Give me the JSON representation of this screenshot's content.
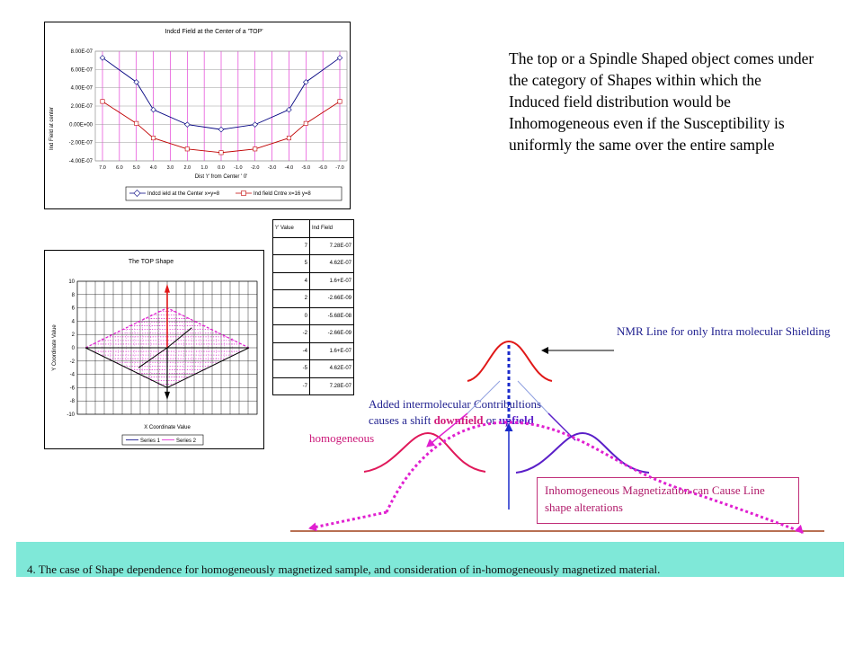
{
  "chart1": {
    "title": "Indcd Field at the Center of a 'TOP'",
    "ylabel": "Ind Field at center",
    "xlabel": "Dist 'r' from Center ' 0'",
    "yticks": [
      "8.00E-07",
      "6.00E-07",
      "4.00E-07",
      "2.00E-07",
      "0.00E+00",
      "-2.00E-07",
      "-4.00E-07"
    ],
    "xticks": [
      "7.0",
      "6.0",
      "5.0",
      "4.0",
      "3.0",
      "2.0",
      "1.0",
      "0.0",
      "-1.0",
      "-2.0",
      "-3.0",
      "-4.0",
      "-5.0",
      "-6.0",
      "-7.0"
    ],
    "legend": [
      "Indcd ield at the Center x=y=8",
      "Ind field Cntre x=16 y=8"
    ]
  },
  "chart2": {
    "title": "The TOP Shape",
    "ylabel": "Y Coordinate Value",
    "xlabel": "X Coordinate Value",
    "yticks": [
      "10",
      "8",
      "6",
      "4",
      "2",
      "0",
      "-2",
      "-4",
      "-6",
      "-8",
      "-10"
    ],
    "legend": [
      "Series 1",
      "Series 2"
    ]
  },
  "table": {
    "headers": [
      "'r' Value",
      "Ind Field"
    ],
    "rows": [
      [
        "7",
        "7.28E-07"
      ],
      [
        "5",
        "4.62E-07"
      ],
      [
        "4",
        "1.6+E-07"
      ],
      [
        "2",
        "-2.66E-09"
      ],
      [
        "0",
        "-5.68E-08"
      ],
      [
        "-2",
        "-2.66E-09"
      ],
      [
        "-4",
        "1.6+E-07"
      ],
      [
        "-5",
        "4.62E-07"
      ],
      [
        "-7",
        "7.28E-07"
      ]
    ]
  },
  "chart_data": [
    {
      "type": "line",
      "title": "Indcd Field at the Center of a 'TOP'",
      "xlabel": "Dist 'r' from Center ' 0'",
      "ylabel": "Ind Field at center",
      "x": [
        7,
        5,
        4,
        2,
        0,
        -2,
        -4,
        -5,
        -7
      ],
      "ylim": [
        -4e-07,
        8e-07
      ],
      "series": [
        {
          "name": "Indcd ield at the Center x=y=8",
          "values": [
            7.28e-07,
            4.62e-07,
            1.6e-07,
            -2.66e-09,
            -5.68e-08,
            -2.66e-09,
            1.6e-07,
            4.62e-07,
            7.28e-07
          ]
        },
        {
          "name": "Ind field Cntre x=16 y=8",
          "values": [
            2.5e-07,
            1e-08,
            -1.5e-07,
            -2.7e-07,
            -3.1e-07,
            -2.7e-07,
            -1.5e-07,
            1e-08,
            2.5e-07
          ]
        }
      ]
    },
    {
      "type": "line",
      "title": "The TOP Shape",
      "xlabel": "X Coordinate Value",
      "ylabel": "Y Coordinate Value",
      "ylim": [
        -10,
        10
      ],
      "series": [
        {
          "name": "Series 1",
          "x": [
            -10,
            0,
            10,
            0,
            -10
          ],
          "y": [
            0,
            -6,
            0,
            -6,
            0
          ]
        },
        {
          "name": "Series 2",
          "x": [
            -10,
            0,
            10,
            0,
            -10
          ],
          "y": [
            0,
            6,
            0,
            6,
            0
          ]
        }
      ]
    }
  ],
  "text": {
    "description": "The top or a Spindle Shaped object comes under the category of Shapes within which the Induced field distribution would be Inhomogeneous even if the Susceptibility is uniformly the same over the entire sample",
    "nmr_label": "NMR Line for only Intra molecular Shielding",
    "added_line1": "Added intermolecular Contribultions",
    "added_line2_pre": "causes a shift ",
    "downfield": "downfield",
    "or": " or ",
    "upfield": "upfield",
    "homogeneous": "homogeneous",
    "inhomogeneous_box": "Inhomogeneous Magnetization can Cause Line shape alterations",
    "footer": "4. The case of Shape dependence for homogeneously magnetized sample, and consideration of in-homogeneously magnetized material."
  },
  "colors": {
    "series_dark": "#000080",
    "series_red": "#c00000",
    "magenta": "#e020d0",
    "purple": "#5a1fc8",
    "red_curve": "#e0185a",
    "baseline": "#a0401a",
    "footer_bg": "#7fe8d8"
  }
}
